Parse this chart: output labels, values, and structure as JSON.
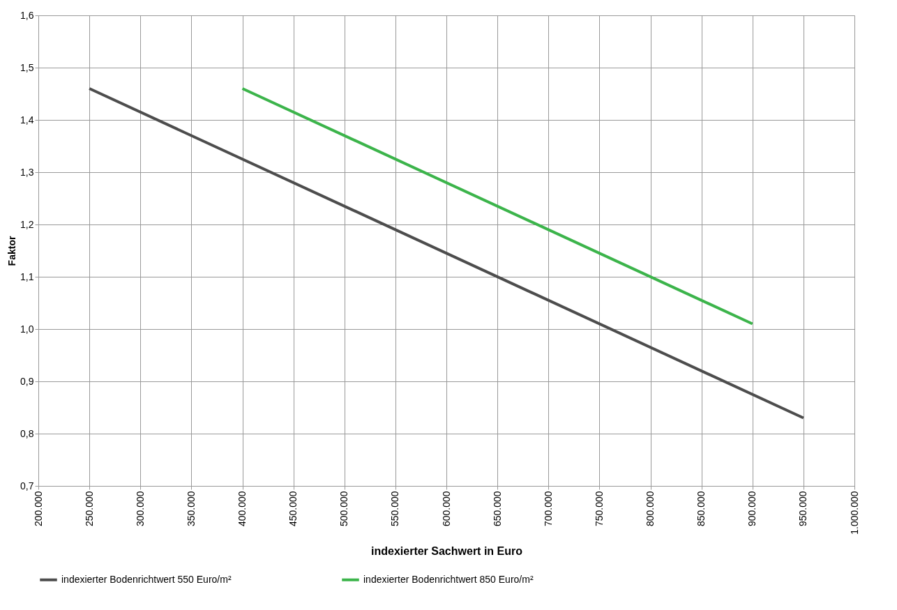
{
  "chart_data": {
    "type": "line",
    "xlabel": "indexierter Sachwert in Euro",
    "ylabel": "Faktor",
    "series": [
      {
        "name": "indexierter Bodenrichtwert 550 Euro/m²",
        "color": "#4d4d4d",
        "x": [
          250000,
          950000
        ],
        "values": [
          1.46,
          0.83
        ]
      },
      {
        "name": "indexierter Bodenrichtwert 850 Euro/m²",
        "color": "#3cb44b",
        "x": [
          400000,
          900000
        ],
        "values": [
          1.46,
          1.01
        ]
      }
    ],
    "xlim": [
      200000,
      1000000
    ],
    "xticks": [
      {
        "value": 200000,
        "label": "200.000"
      },
      {
        "value": 250000,
        "label": "250.000"
      },
      {
        "value": 300000,
        "label": "300.000"
      },
      {
        "value": 350000,
        "label": "350.000"
      },
      {
        "value": 400000,
        "label": "400.000"
      },
      {
        "value": 450000,
        "label": "450.000"
      },
      {
        "value": 500000,
        "label": "500.000"
      },
      {
        "value": 550000,
        "label": "550.000"
      },
      {
        "value": 600000,
        "label": "600.000"
      },
      {
        "value": 650000,
        "label": "650.000"
      },
      {
        "value": 700000,
        "label": "700.000"
      },
      {
        "value": 750000,
        "label": "750.000"
      },
      {
        "value": 800000,
        "label": "800.000"
      },
      {
        "value": 850000,
        "label": "850.000"
      },
      {
        "value": 900000,
        "label": "900.000"
      },
      {
        "value": 950000,
        "label": "950.000"
      },
      {
        "value": 1000000,
        "label": "1.000.000"
      }
    ],
    "ylim": [
      0.7,
      1.6
    ],
    "yticks": [
      {
        "value": 0.7,
        "label": "0,7"
      },
      {
        "value": 0.8,
        "label": "0,8"
      },
      {
        "value": 0.9,
        "label": "0,9"
      },
      {
        "value": 1.0,
        "label": "1,0"
      },
      {
        "value": 1.1,
        "label": "1,1"
      },
      {
        "value": 1.2,
        "label": "1,2"
      },
      {
        "value": 1.3,
        "label": "1,3"
      },
      {
        "value": 1.4,
        "label": "1,4"
      },
      {
        "value": 1.5,
        "label": "1,5"
      },
      {
        "value": 1.6,
        "label": "1,6"
      }
    ],
    "grid": true,
    "legend": "bottom",
    "marker": "none",
    "line_style": "solid"
  }
}
